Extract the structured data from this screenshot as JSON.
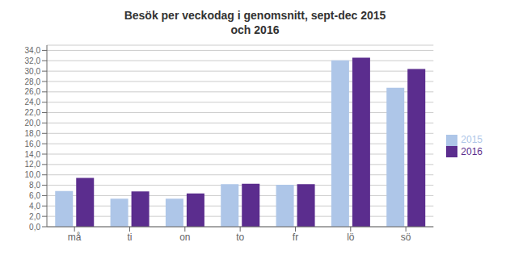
{
  "chart_data": {
    "type": "bar",
    "title": "Besök per veckodag i genomsnitt, sept-dec 2015\noch 2016",
    "categories": [
      "må",
      "ti",
      "on",
      "to",
      "fr",
      "lö",
      "sö"
    ],
    "series": [
      {
        "name": "2015",
        "color": "#aec6e8",
        "values": [
          6.9,
          5.4,
          5.4,
          8.2,
          8.1,
          32.1,
          26.8
        ]
      },
      {
        "name": "2016",
        "color": "#5b2d8e",
        "values": [
          9.4,
          6.8,
          6.4,
          8.3,
          8.2,
          32.6,
          30.4
        ]
      }
    ],
    "ylim": [
      0,
      35
    ],
    "yticks": [
      {
        "value": 0.0,
        "label": "0,0"
      },
      {
        "value": 2.0,
        "label": "2,0"
      },
      {
        "value": 4.0,
        "label": "4,0"
      },
      {
        "value": 6.0,
        "label": "6,0"
      },
      {
        "value": 8.0,
        "label": "8,0"
      },
      {
        "value": 10.0,
        "label": "10,0"
      },
      {
        "value": 12.0,
        "label": "12,0"
      },
      {
        "value": 14.0,
        "label": "14,0"
      },
      {
        "value": 16.0,
        "label": "16,0"
      },
      {
        "value": 18.0,
        "label": "18,0"
      },
      {
        "value": 20.0,
        "label": "20,0"
      },
      {
        "value": 22.0,
        "label": "22,0"
      },
      {
        "value": 24.0,
        "label": "24,0"
      },
      {
        "value": 26.0,
        "label": "26,0"
      },
      {
        "value": 28.0,
        "label": "28,0"
      },
      {
        "value": 30.0,
        "label": "30,0"
      },
      {
        "value": 32.0,
        "label": "32,0"
      },
      {
        "value": 34.0,
        "label": "34,0"
      }
    ],
    "grid": true,
    "legend": "right"
  }
}
